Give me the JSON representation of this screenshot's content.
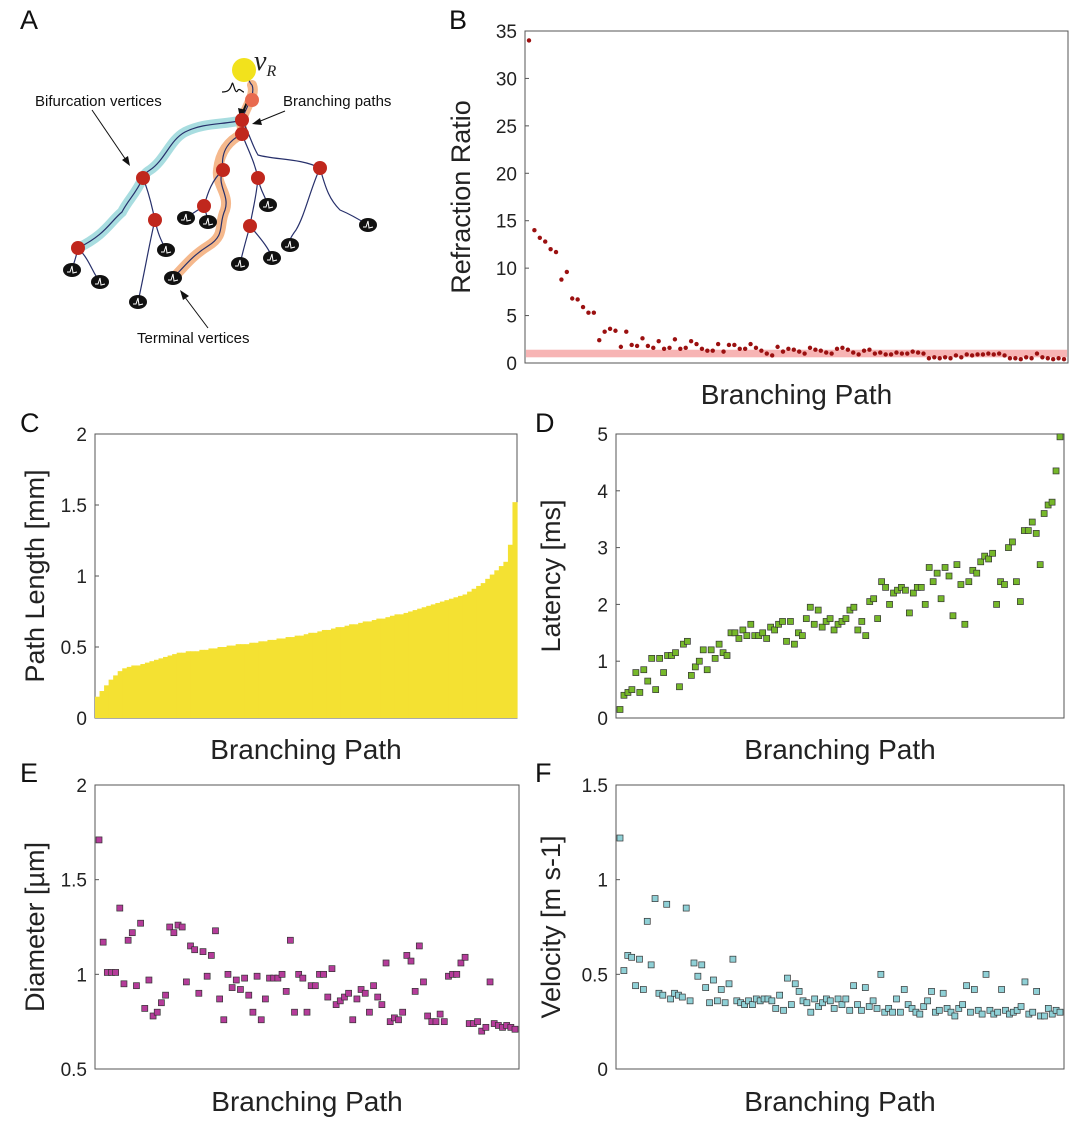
{
  "panel_labels": {
    "a": "A",
    "b": "B",
    "c": "C",
    "d": "D",
    "e": "E",
    "f": "F"
  },
  "diagram": {
    "root_label": "v",
    "root_subscript": "R",
    "bifurcation_label": "Bifurcation vertices",
    "branching_label": "Branching paths",
    "terminal_label": "Terminal vertices",
    "colors": {
      "vertex": "#c0271d",
      "root": "#f2e21c",
      "highlight_teal": "#a8dde0",
      "highlight_orange": "#f5b88c",
      "edge": "#27306b"
    }
  },
  "colors": {
    "refraction": "#9b1010",
    "refraction_band": "#f7b4b4",
    "length": "#f4e132",
    "latency": "#76b82a",
    "diameter": "#b53c9a",
    "velocity": "#8fd0d6"
  },
  "chart_data": [
    {
      "id": "B",
      "type": "scatter",
      "xlabel": "Branching Path",
      "ylabel": "Refraction Ratio",
      "ylim": [
        0,
        35
      ],
      "yticks": [
        "0",
        "5",
        "10",
        "15",
        "20",
        "25",
        "30",
        "35"
      ],
      "reference_band": [
        0.6,
        1.4
      ],
      "values": [
        34.0,
        14.0,
        13.2,
        12.8,
        12.0,
        11.7,
        8.8,
        9.6,
        6.8,
        6.7,
        5.9,
        5.3,
        5.3,
        2.4,
        3.3,
        3.6,
        3.4,
        1.7,
        3.3,
        1.9,
        1.8,
        2.6,
        1.8,
        1.6,
        2.3,
        1.5,
        1.6,
        2.5,
        1.5,
        1.6,
        2.3,
        2.0,
        1.5,
        1.3,
        1.3,
        2.0,
        1.2,
        1.9,
        1.9,
        1.5,
        1.5,
        2.0,
        1.6,
        1.3,
        1.0,
        0.8,
        1.7,
        1.2,
        1.5,
        1.4,
        1.2,
        1.0,
        1.6,
        1.4,
        1.3,
        1.1,
        1.0,
        1.5,
        1.6,
        1.4,
        1.1,
        0.9,
        1.3,
        1.4,
        1.0,
        1.1,
        0.9,
        0.9,
        1.1,
        1.0,
        1.0,
        1.2,
        1.1,
        1.0,
        0.5,
        0.6,
        0.5,
        0.6,
        0.5,
        0.8,
        0.6,
        0.9,
        0.8,
        0.9,
        0.9,
        1.0,
        0.9,
        1.0,
        0.8,
        0.5,
        0.5,
        0.4,
        0.6,
        0.5,
        1.0,
        0.6,
        0.5,
        0.4,
        0.5,
        0.4
      ]
    },
    {
      "id": "C",
      "type": "bar",
      "xlabel": "Branching Path",
      "ylabel": "Path Length [mm]",
      "ylim": [
        0,
        2
      ],
      "yticks": [
        "0",
        "0.5",
        "1",
        "1.5",
        "2"
      ],
      "values": [
        0.15,
        0.19,
        0.23,
        0.27,
        0.3,
        0.33,
        0.35,
        0.36,
        0.37,
        0.37,
        0.38,
        0.39,
        0.4,
        0.41,
        0.42,
        0.43,
        0.44,
        0.45,
        0.46,
        0.46,
        0.47,
        0.47,
        0.47,
        0.48,
        0.48,
        0.49,
        0.49,
        0.5,
        0.5,
        0.51,
        0.51,
        0.52,
        0.52,
        0.52,
        0.53,
        0.53,
        0.54,
        0.54,
        0.55,
        0.55,
        0.56,
        0.56,
        0.57,
        0.57,
        0.58,
        0.58,
        0.59,
        0.6,
        0.6,
        0.61,
        0.62,
        0.62,
        0.63,
        0.64,
        0.64,
        0.65,
        0.66,
        0.66,
        0.67,
        0.68,
        0.68,
        0.69,
        0.7,
        0.7,
        0.71,
        0.72,
        0.73,
        0.73,
        0.74,
        0.75,
        0.76,
        0.77,
        0.78,
        0.79,
        0.8,
        0.81,
        0.82,
        0.83,
        0.84,
        0.85,
        0.86,
        0.87,
        0.89,
        0.91,
        0.93,
        0.95,
        0.98,
        1.01,
        1.04,
        1.07,
        1.1,
        1.22,
        1.52
      ]
    },
    {
      "id": "D",
      "type": "scatter",
      "xlabel": "Branching Path",
      "ylabel": "Latency [ms]",
      "ylim": [
        0,
        5
      ],
      "yticks": [
        "0",
        "1",
        "2",
        "3",
        "4",
        "5"
      ],
      "values": [
        0.15,
        0.4,
        0.45,
        0.5,
        0.8,
        0.45,
        0.85,
        0.65,
        1.05,
        0.5,
        1.05,
        0.8,
        1.1,
        1.1,
        1.15,
        0.55,
        1.3,
        1.35,
        0.75,
        0.9,
        1.0,
        1.2,
        0.85,
        1.2,
        1.05,
        1.3,
        1.15,
        1.1,
        1.5,
        1.5,
        1.4,
        1.55,
        1.45,
        1.65,
        1.45,
        1.45,
        1.5,
        1.4,
        1.6,
        1.55,
        1.65,
        1.7,
        1.35,
        1.7,
        1.3,
        1.5,
        1.45,
        1.75,
        1.95,
        1.65,
        1.9,
        1.6,
        1.7,
        1.75,
        1.55,
        1.65,
        1.7,
        1.75,
        1.9,
        1.95,
        1.55,
        1.7,
        1.45,
        2.05,
        2.1,
        1.75,
        2.4,
        2.3,
        2.0,
        2.2,
        2.25,
        2.3,
        2.25,
        1.85,
        2.2,
        2.3,
        2.3,
        2.0,
        2.65,
        2.4,
        2.55,
        2.1,
        2.65,
        2.5,
        1.8,
        2.7,
        2.35,
        1.65,
        2.4,
        2.6,
        2.55,
        2.75,
        2.85,
        2.8,
        2.9,
        2.0,
        2.4,
        2.35,
        3.0,
        3.1,
        2.4,
        2.05,
        3.3,
        3.3,
        3.45,
        3.25,
        2.7,
        3.6,
        3.75,
        3.8,
        4.35,
        4.95
      ]
    },
    {
      "id": "E",
      "type": "scatter",
      "xlabel": "Branching Path",
      "ylabel": "Diameter [µm]",
      "ylim": [
        0.5,
        2
      ],
      "yticks": [
        "0.5",
        "1",
        "1.5",
        "2"
      ],
      "values": [
        1.71,
        1.17,
        1.01,
        1.01,
        1.01,
        1.35,
        0.95,
        1.18,
        1.22,
        0.94,
        1.27,
        0.82,
        0.97,
        0.78,
        0.8,
        0.85,
        0.89,
        1.25,
        1.22,
        1.26,
        1.25,
        0.96,
        1.15,
        1.13,
        0.9,
        1.12,
        0.99,
        1.1,
        1.23,
        0.87,
        0.76,
        1.0,
        0.93,
        0.97,
        0.92,
        0.98,
        0.89,
        0.8,
        0.99,
        0.76,
        0.87,
        0.98,
        0.98,
        0.98,
        1.0,
        0.91,
        1.18,
        0.8,
        1.0,
        0.98,
        0.8,
        0.94,
        0.94,
        1.0,
        1.0,
        0.88,
        1.03,
        0.84,
        0.86,
        0.88,
        0.9,
        0.76,
        0.87,
        0.92,
        0.9,
        0.8,
        0.94,
        0.88,
        0.84,
        1.06,
        0.75,
        0.77,
        0.76,
        0.8,
        1.1,
        1.07,
        0.91,
        1.15,
        0.96,
        0.78,
        0.75,
        0.75,
        0.79,
        0.75,
        0.99,
        1.0,
        1.0,
        1.06,
        1.09,
        0.74,
        0.74,
        0.75,
        0.7,
        0.72,
        0.96,
        0.74,
        0.73,
        0.72,
        0.73,
        0.72,
        0.71
      ]
    },
    {
      "id": "F",
      "type": "scatter",
      "xlabel": "Branching Path",
      "ylabel": "Velocity [m s-1]",
      "ylim": [
        0,
        1.5
      ],
      "yticks": [
        "0",
        "0.5",
        "1",
        "1.5"
      ],
      "values": [
        1.22,
        0.52,
        0.6,
        0.59,
        0.44,
        0.58,
        0.42,
        0.78,
        0.55,
        0.9,
        0.4,
        0.39,
        0.87,
        0.37,
        0.4,
        0.39,
        0.38,
        0.85,
        0.36,
        0.56,
        0.49,
        0.55,
        0.43,
        0.35,
        0.47,
        0.36,
        0.42,
        0.35,
        0.45,
        0.58,
        0.36,
        0.35,
        0.34,
        0.36,
        0.34,
        0.37,
        0.36,
        0.37,
        0.37,
        0.36,
        0.32,
        0.39,
        0.31,
        0.48,
        0.34,
        0.45,
        0.41,
        0.36,
        0.35,
        0.3,
        0.37,
        0.33,
        0.35,
        0.37,
        0.36,
        0.32,
        0.37,
        0.34,
        0.37,
        0.31,
        0.44,
        0.34,
        0.31,
        0.43,
        0.33,
        0.36,
        0.32,
        0.5,
        0.3,
        0.32,
        0.3,
        0.37,
        0.3,
        0.42,
        0.34,
        0.32,
        0.3,
        0.29,
        0.33,
        0.36,
        0.41,
        0.3,
        0.31,
        0.4,
        0.32,
        0.3,
        0.28,
        0.32,
        0.34,
        0.44,
        0.3,
        0.42,
        0.31,
        0.29,
        0.5,
        0.31,
        0.29,
        0.3,
        0.42,
        0.31,
        0.29,
        0.3,
        0.31,
        0.33,
        0.46,
        0.29,
        0.3,
        0.41,
        0.28,
        0.28,
        0.32,
        0.29,
        0.31,
        0.3
      ]
    }
  ]
}
